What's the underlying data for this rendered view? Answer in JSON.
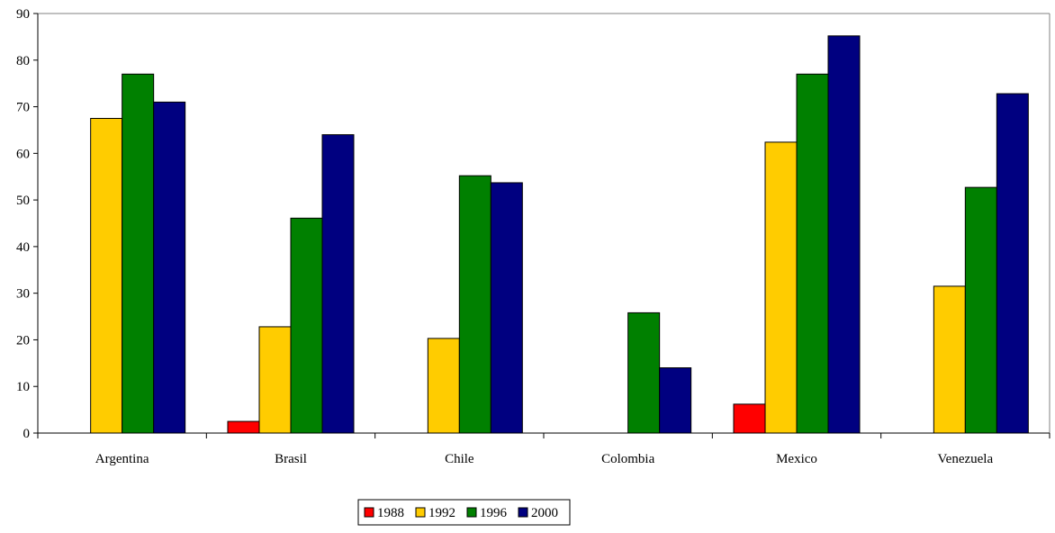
{
  "chart_data": {
    "type": "bar",
    "title": "",
    "xlabel": "",
    "ylabel": "",
    "ylim": [
      0,
      90
    ],
    "yticks": [
      0,
      10,
      20,
      30,
      40,
      50,
      60,
      70,
      80,
      90
    ],
    "grid": false,
    "legend_position": "bottom-center",
    "categories": [
      "Argentina",
      "Brasil",
      "Chile",
      "Colombia",
      "Mexico",
      "Venezuela"
    ],
    "series": [
      {
        "name": "1988",
        "color": "#ff0000",
        "values": [
          null,
          2.5,
          null,
          null,
          6.2,
          null
        ]
      },
      {
        "name": "1992",
        "color": "#ffcc00",
        "values": [
          67.5,
          22.8,
          20.3,
          null,
          62.4,
          31.5
        ]
      },
      {
        "name": "1996",
        "color": "#008000",
        "values": [
          77.0,
          46.1,
          55.2,
          25.8,
          77.0,
          52.7
        ]
      },
      {
        "name": "2000",
        "color": "#000080",
        "values": [
          71.0,
          64.0,
          53.7,
          14.0,
          85.2,
          72.8
        ]
      }
    ]
  }
}
